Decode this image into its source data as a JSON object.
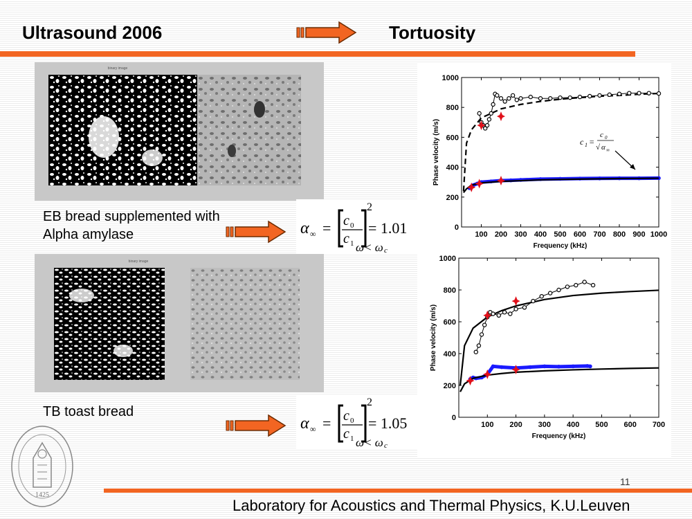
{
  "header": {
    "title_left": "Ultrasound 2006",
    "title_right": "Tortuosity",
    "arrow_icon": "orange-arrow-icon",
    "accent_color": "#f26522"
  },
  "panels": [
    {
      "binary_caption": "binary image",
      "caption_lines": [
        "EB bread supplemented with",
        "Alpha amylase"
      ],
      "formula": {
        "lhs": "α",
        "sub": "∞",
        "num": "c",
        "num_sub": "0",
        "den": "c",
        "den_sub": "1",
        "exp": "2",
        "value": "= 1.01",
        "cond": "ω< ω",
        "cond_sub": "c"
      }
    },
    {
      "binary_caption": "binary image",
      "caption_lines": [
        "TB toast bread"
      ],
      "formula": {
        "lhs": "α",
        "sub": "∞",
        "num": "c",
        "num_sub": "0",
        "den": "c",
        "den_sub": "1",
        "exp": "2",
        "value": "= 1.05",
        "cond": "ω< ω",
        "cond_sub": "c"
      }
    }
  ],
  "chart_data": [
    {
      "type": "scatter",
      "xlabel": "Frequency (kHz)",
      "ylabel": "Phase velocity (m/s)",
      "xlim": [
        0,
        1000
      ],
      "ylim": [
        0,
        1000
      ],
      "xticks": [
        100,
        200,
        300,
        400,
        500,
        600,
        700,
        800,
        900,
        1000
      ],
      "yticks": [
        0,
        200,
        400,
        600,
        800,
        1000
      ],
      "annotation": {
        "lhs": "c",
        "lhs_sub": "1",
        "num": "c",
        "num_sub": "0",
        "den": "α",
        "den_sub": "∞"
      },
      "series": [
        {
          "style": "dashed-line",
          "color": "#000000",
          "x": [
            10,
            25,
            50,
            100,
            200,
            300,
            400,
            500,
            600,
            700,
            800,
            900,
            1000
          ],
          "y": [
            240,
            560,
            650,
            730,
            790,
            820,
            840,
            855,
            865,
            875,
            880,
            888,
            893
          ]
        },
        {
          "style": "circles",
          "color": "#000000",
          "x": [
            90,
            100,
            110,
            120,
            130,
            140,
            150,
            160,
            170,
            180,
            200,
            220,
            240,
            260,
            280,
            300,
            350,
            400,
            450,
            500,
            550,
            600,
            650,
            700,
            750,
            800,
            850,
            900,
            950,
            1000
          ],
          "y": [
            760,
            700,
            680,
            660,
            680,
            720,
            760,
            820,
            890,
            880,
            860,
            840,
            860,
            880,
            850,
            860,
            870,
            860,
            860,
            865,
            865,
            870,
            875,
            880,
            885,
            890,
            895,
            895,
            895,
            893
          ]
        },
        {
          "style": "blue-dots",
          "color": "#1a1aff",
          "x": [
            40,
            50,
            60,
            80,
            100,
            150,
            200,
            250,
            300,
            400,
            500,
            600,
            700,
            800,
            900,
            1000
          ],
          "y": [
            260,
            270,
            280,
            290,
            300,
            305,
            310,
            312,
            315,
            320,
            322,
            324,
            325,
            326,
            326,
            327
          ]
        },
        {
          "style": "solid-line",
          "color": "#000000",
          "x": [
            10,
            25,
            50,
            100,
            200,
            300,
            400,
            500,
            600,
            700,
            800,
            900,
            1000
          ],
          "y": [
            230,
            255,
            280,
            295,
            305,
            310,
            315,
            318,
            320,
            322,
            324,
            325,
            326
          ]
        },
        {
          "style": "red-stars",
          "color": "#e0101a",
          "x": [
            50,
            100,
            200
          ],
          "y": [
            265,
            680,
            740
          ]
        },
        {
          "style": "red-stars",
          "color": "#e0101a",
          "x": [
            90,
            200
          ],
          "y": [
            290,
            310
          ]
        }
      ]
    },
    {
      "type": "scatter",
      "xlabel": "Frequency (kHz)",
      "ylabel": "Phase velocity (m/s)",
      "xlim": [
        0,
        700
      ],
      "ylim": [
        0,
        1000
      ],
      "xticks": [
        100,
        200,
        300,
        400,
        500,
        600,
        700
      ],
      "yticks": [
        0,
        200,
        400,
        600,
        800,
        1000
      ],
      "series": [
        {
          "style": "solid-line",
          "color": "#000000",
          "x": [
            5,
            20,
            50,
            100,
            150,
            200,
            300,
            400,
            500,
            600,
            700
          ],
          "y": [
            200,
            450,
            560,
            630,
            670,
            700,
            740,
            765,
            780,
            790,
            798
          ]
        },
        {
          "style": "circles",
          "color": "#000000",
          "x": [
            60,
            70,
            80,
            90,
            100,
            110,
            120,
            140,
            160,
            180,
            200,
            230,
            260,
            290,
            320,
            350,
            380,
            410,
            440,
            470
          ],
          "y": [
            410,
            450,
            520,
            580,
            630,
            660,
            650,
            640,
            660,
            650,
            680,
            690,
            730,
            760,
            780,
            800,
            820,
            830,
            850,
            830
          ]
        },
        {
          "style": "blue-dots",
          "color": "#1a1aff",
          "x": [
            40,
            50,
            60,
            80,
            100,
            120,
            150,
            200,
            250,
            300,
            350,
            400,
            450,
            460
          ],
          "y": [
            240,
            250,
            245,
            250,
            270,
            320,
            315,
            310,
            315,
            320,
            318,
            320,
            322,
            320
          ]
        },
        {
          "style": "solid-line",
          "color": "#000000",
          "x": [
            5,
            20,
            50,
            100,
            150,
            200,
            300,
            400,
            500,
            600,
            700
          ],
          "y": [
            160,
            210,
            245,
            265,
            275,
            283,
            292,
            298,
            303,
            307,
            310
          ]
        },
        {
          "style": "red-stars",
          "color": "#e0101a",
          "x": [
            40,
            100,
            200
          ],
          "y": [
            230,
            270,
            300
          ]
        },
        {
          "style": "red-stars",
          "color": "#e0101a",
          "x": [
            100,
            200
          ],
          "y": [
            640,
            730
          ]
        }
      ]
    }
  ],
  "footer": {
    "lab": "Laboratory for Acoustics and Thermal Physics, K.U.Leuven",
    "page": "11",
    "logo_year": "1425"
  }
}
